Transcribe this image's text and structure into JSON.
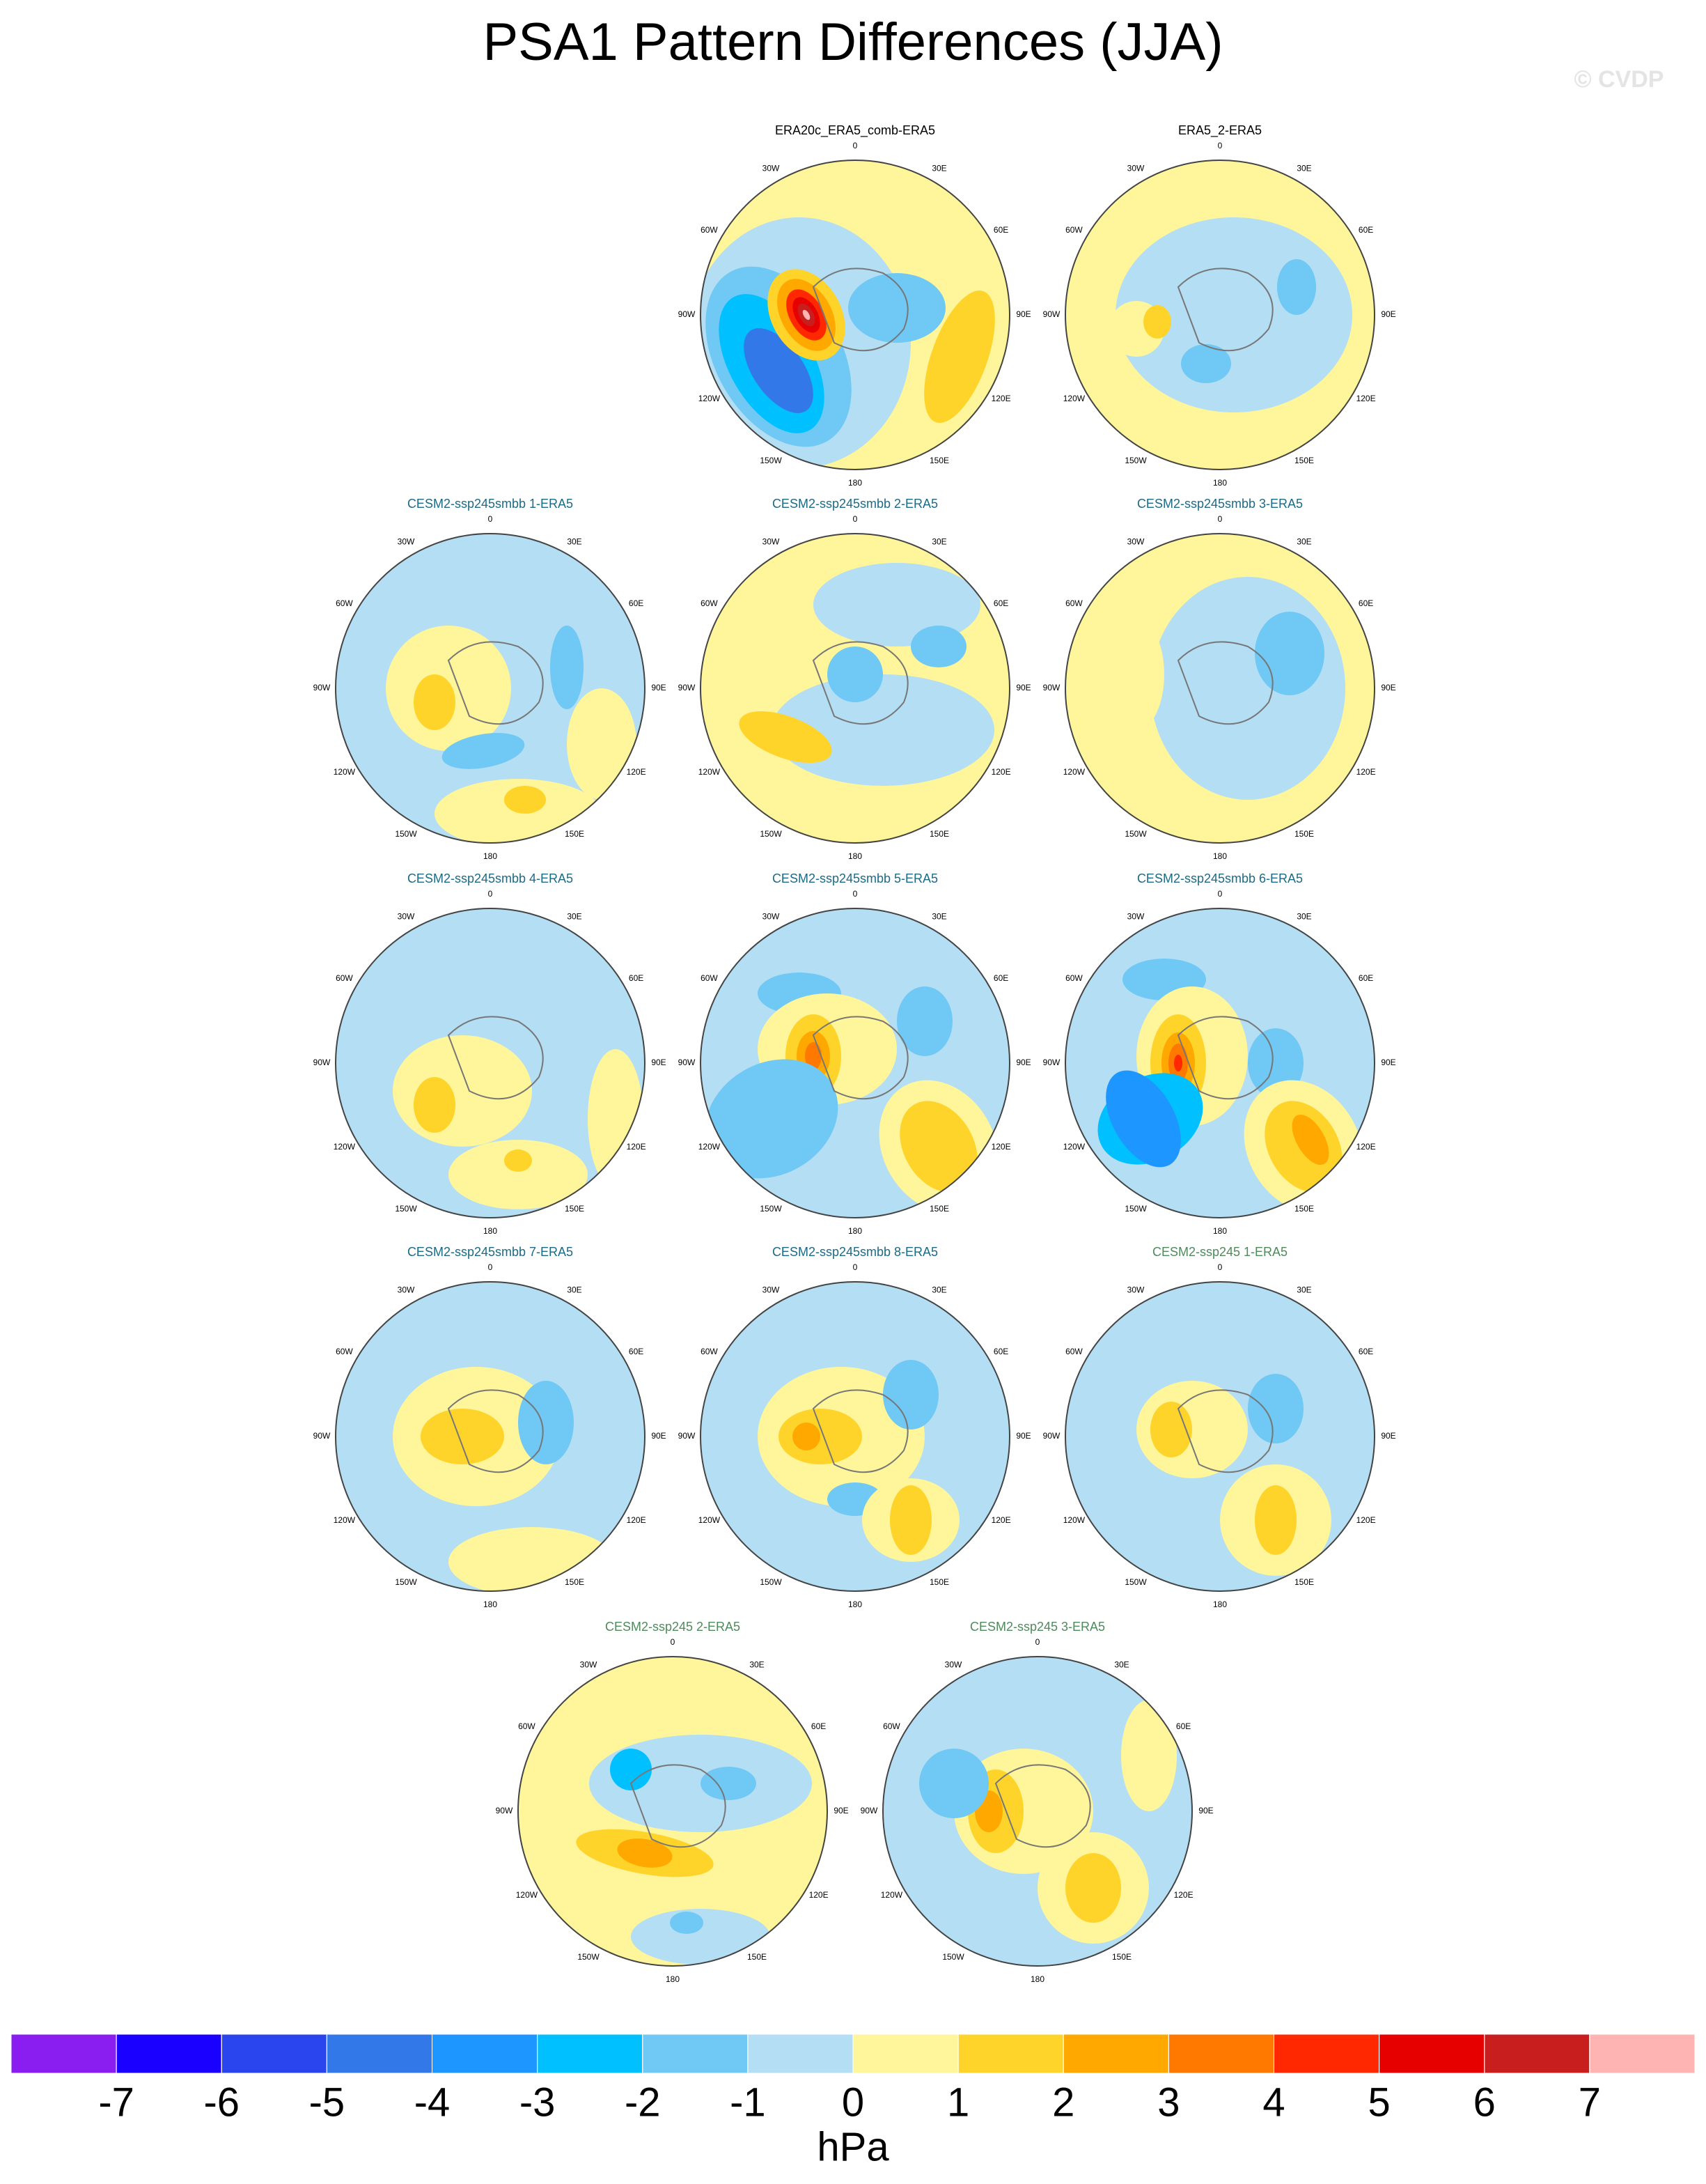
{
  "header": {
    "title": "PSA1 Pattern Differences (JJA)",
    "watermark": "© CVDP"
  },
  "lon_labels": [
    "0",
    "30E",
    "60E",
    "90E",
    "120E",
    "150E",
    "180",
    "150W",
    "120W",
    "90W",
    "60W",
    "30W"
  ],
  "panels": [
    {
      "title": "ERA20c_ERA5_comb-ERA5",
      "color": "#000000"
    },
    {
      "title": "ERA5_2-ERA5",
      "color": "#000000"
    },
    {
      "title": "CESM2-ssp245smbb 1-ERA5",
      "color": "#1b6a86"
    },
    {
      "title": "CESM2-ssp245smbb 2-ERA5",
      "color": "#1b6a86"
    },
    {
      "title": "CESM2-ssp245smbb 3-ERA5",
      "color": "#1b6a86"
    },
    {
      "title": "CESM2-ssp245smbb 4-ERA5",
      "color": "#1b6a86"
    },
    {
      "title": "CESM2-ssp245smbb 5-ERA5",
      "color": "#1b6a86"
    },
    {
      "title": "CESM2-ssp245smbb 6-ERA5",
      "color": "#1b6a86"
    },
    {
      "title": "CESM2-ssp245smbb 7-ERA5",
      "color": "#1b6a86"
    },
    {
      "title": "CESM2-ssp245smbb 8-ERA5",
      "color": "#1b6a86"
    },
    {
      "title": "CESM2-ssp245 1-ERA5",
      "color": "#4f8a5c"
    },
    {
      "title": "CESM2-ssp245 2-ERA5",
      "color": "#4f8a5c"
    },
    {
      "title": "CESM2-ssp245 3-ERA5",
      "color": "#4f8a5c"
    }
  ],
  "colorbar": {
    "colors": [
      "#8a1ef0",
      "#1a00ff",
      "#2a44ee",
      "#3278e8",
      "#1e96ff",
      "#00c0ff",
      "#70c8f4",
      "#b4def4",
      "#fff59a",
      "#ffd42a",
      "#ffa800",
      "#ff7800",
      "#ff2800",
      "#e60000",
      "#c81e1e",
      "#ffb4b4"
    ],
    "ticks": [
      -7,
      -6,
      -5,
      -4,
      -3,
      -2,
      -1,
      0,
      1,
      2,
      3,
      4,
      5,
      6,
      7
    ],
    "label": "hPa"
  }
}
